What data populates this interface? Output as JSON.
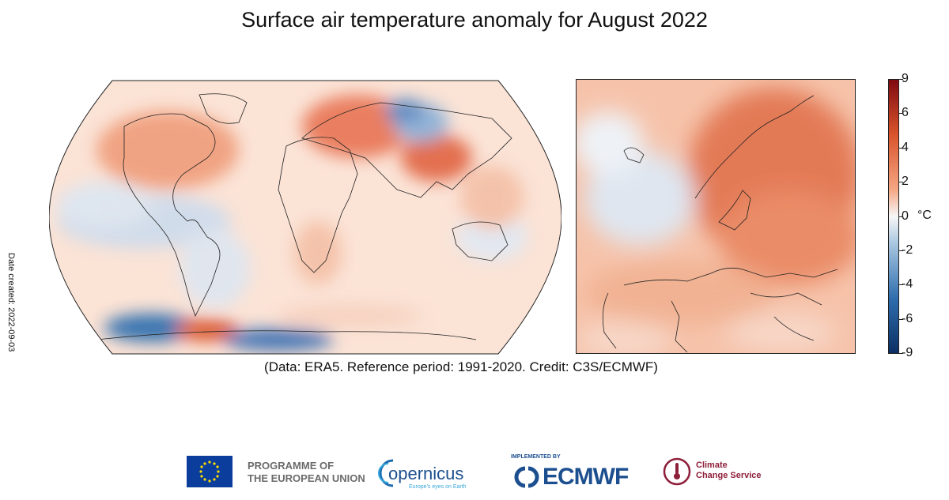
{
  "title": "Surface air temperature anomaly for August 2022",
  "credit": "(Data: ERA5.  Reference period: 1991-2020.  Credit: C3S/ECMWF)",
  "date_created": "Date created: 2022-09-03",
  "colorbar": {
    "unit": "°C",
    "ticks": [
      "9",
      "6",
      "4",
      "2",
      "0",
      "-2",
      "-4",
      "-6",
      "-9"
    ],
    "colors": {
      "max": "#7f0a10",
      "high": "#d9542c",
      "mid_high": "#f4a582",
      "zero": "#f7f7f7",
      "mid_low": "#a8c6e0",
      "low": "#2f6eae",
      "min": "#0b2f63"
    }
  },
  "logos": {
    "eu_line1": "PROGRAMME OF",
    "eu_line2": "THE EUROPEAN UNION",
    "copernicus": "opernicus",
    "copernicus_tagline": "Europe's eyes on Earth",
    "ecmwf_top": "IMPLEMENTED BY",
    "ecmwf": "ECMWF",
    "c3s_line1": "Climate",
    "c3s_line2": "Change Service"
  }
}
